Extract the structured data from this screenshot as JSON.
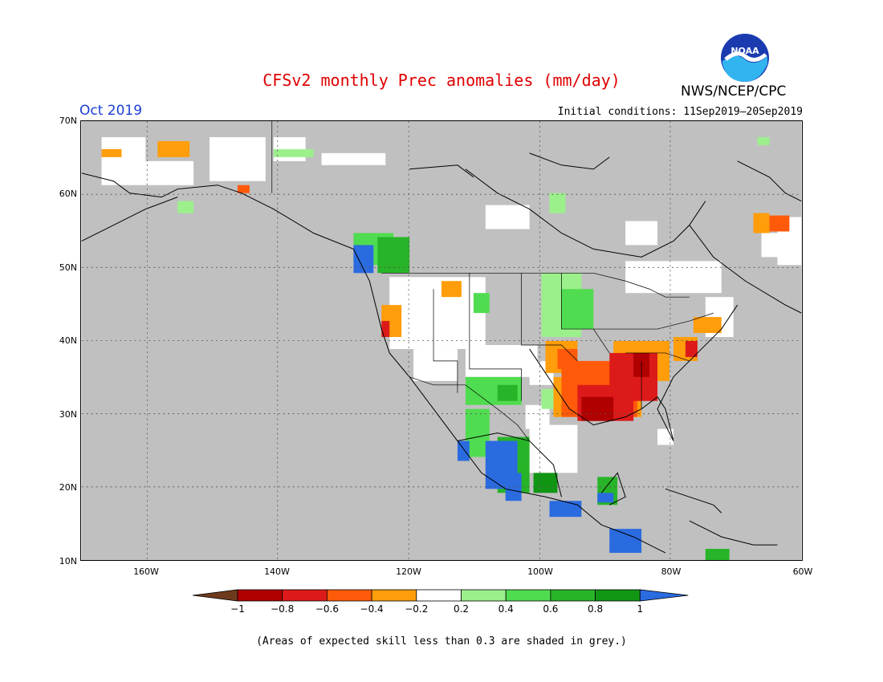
{
  "title": "CFSv2 monthly Prec anomalies (mm/day)",
  "organization": "NWS/NCEP/CPC",
  "month": "Oct 2019",
  "initial_conditions": "Initial conditions: 11Sep2019–20Sep2019",
  "logo_text": "NOAA",
  "footnote": "(Areas of expected skill less than 0.3 are shaded in grey.)",
  "lat_labels": [
    "70N",
    "60N",
    "50N",
    "40N",
    "30N",
    "20N",
    "10N"
  ],
  "lon_labels": [
    "160W",
    "140W",
    "120W",
    "100W",
    "80W",
    "60W"
  ],
  "colors": {
    "no_skill": "#c0c0c0",
    "land_outline": "#000000",
    "title": "#e00000",
    "month_label": "#1a3fd6"
  },
  "legend": {
    "ticks": [
      "−1",
      "−0.8",
      "−0.6",
      "−0.4",
      "−0.2",
      "0.2",
      "0.4",
      "0.6",
      "0.8",
      "1"
    ],
    "colors": [
      "#6e3a1e",
      "#b00000",
      "#dd1a1a",
      "#ff5a0a",
      "#ff9d0a",
      "#ffffff",
      "#9cf08c",
      "#50dc50",
      "#28b428",
      "#119614",
      "#2a6be0"
    ]
  }
}
